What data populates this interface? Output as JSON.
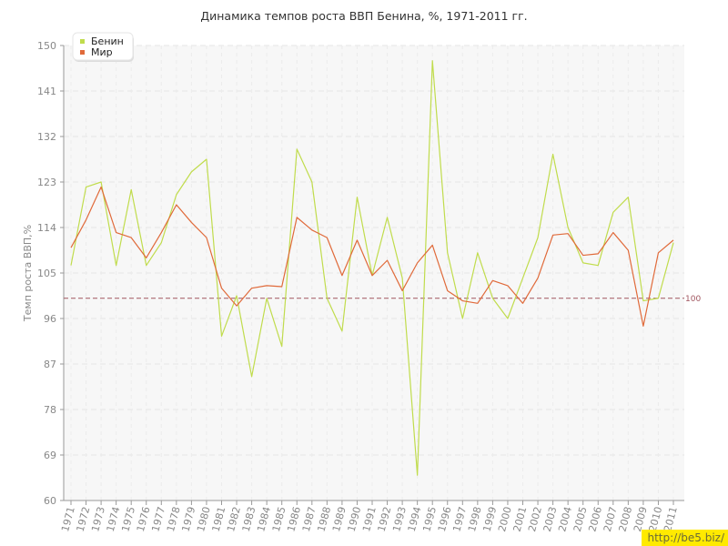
{
  "chart_data": {
    "type": "line",
    "title": "Динамика темпов роста ВВП Бенина, %, 1971-2011 гг.",
    "xlabel": "",
    "ylabel": "Темп роста ВВП,%",
    "ylim": [
      60,
      150
    ],
    "yticks": [
      60,
      69,
      78,
      87,
      96,
      105,
      114,
      123,
      132,
      141,
      150
    ],
    "categories": [
      "1971",
      "1972",
      "1973",
      "1974",
      "1975",
      "1976",
      "1977",
      "1978",
      "1979",
      "1980",
      "1981",
      "1982",
      "1983",
      "1984",
      "1985",
      "1986",
      "1987",
      "1988",
      "1989",
      "1990",
      "1991",
      "1992",
      "1993",
      "1994",
      "1995",
      "1996",
      "1997",
      "1998",
      "1999",
      "2000",
      "2001",
      "2002",
      "2003",
      "2004",
      "2005",
      "2006",
      "2007",
      "2008",
      "2009",
      "2010",
      "2011"
    ],
    "series": [
      {
        "name": "Бенин",
        "color": "#c0dc4c",
        "values": [
          106.5,
          122,
          123,
          106.5,
          121.5,
          106.5,
          111,
          120.5,
          125,
          127.5,
          92.5,
          100.5,
          84.5,
          100,
          90.5,
          129.5,
          123,
          100,
          93.5,
          120,
          104.5,
          116,
          104,
          65,
          147,
          109,
          96,
          109,
          100,
          96,
          104,
          112,
          128.5,
          114,
          107,
          106.5,
          117,
          120,
          99.5,
          100,
          111
        ]
      },
      {
        "name": "Мир",
        "color": "#e06a3a",
        "values": [
          110,
          115.5,
          122,
          113,
          112,
          108,
          113,
          118.5,
          115,
          112,
          102,
          98.5,
          102,
          102.5,
          102.3,
          116,
          113.5,
          112,
          104.5,
          111.5,
          104.5,
          107.5,
          101.5,
          107,
          110.5,
          101.5,
          99.5,
          99,
          103.5,
          102.5,
          99,
          104,
          112.5,
          112.8,
          108.5,
          108.8,
          113,
          109.5,
          94.5,
          109,
          111.5
        ]
      }
    ],
    "reference_line": {
      "value": 100,
      "label": "100",
      "color": "#a0555f"
    },
    "grid": true,
    "legend": "top-left"
  },
  "watermark": "http://be5.biz/"
}
